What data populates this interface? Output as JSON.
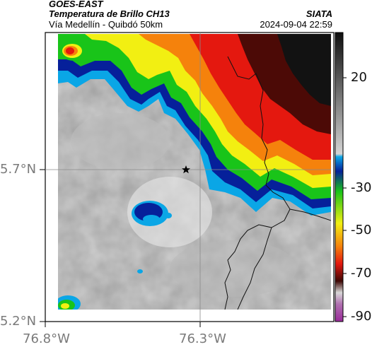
{
  "header": {
    "product": "GOES-EAST",
    "subtitle": "Temperatura de Brillo CH13",
    "region": "Vía Medellín - Quibdó 50km",
    "agency": "SIATA",
    "datetime": "2024-09-04 22:59"
  },
  "axes": {
    "lat_ticks": [
      "5.7°N",
      "5.2°N"
    ],
    "lon_ticks": [
      "76.8°W",
      "76.3°W"
    ]
  },
  "colorbar": {
    "ticks": [
      "20",
      "-30",
      "-50",
      "-70",
      "-90"
    ]
  },
  "colors": {
    "cloud_light": "#d6d6d6",
    "cloud_dark": "#a9a9a9",
    "cyan": "#0aa6e6",
    "blue": "#06209a",
    "green": "#19c419",
    "yellow": "#f2ef12",
    "orange": "#f5820c",
    "red": "#e4180f",
    "darkred": "#4c0a06",
    "black": "#121212"
  },
  "map": {
    "marker": "star-marker"
  }
}
